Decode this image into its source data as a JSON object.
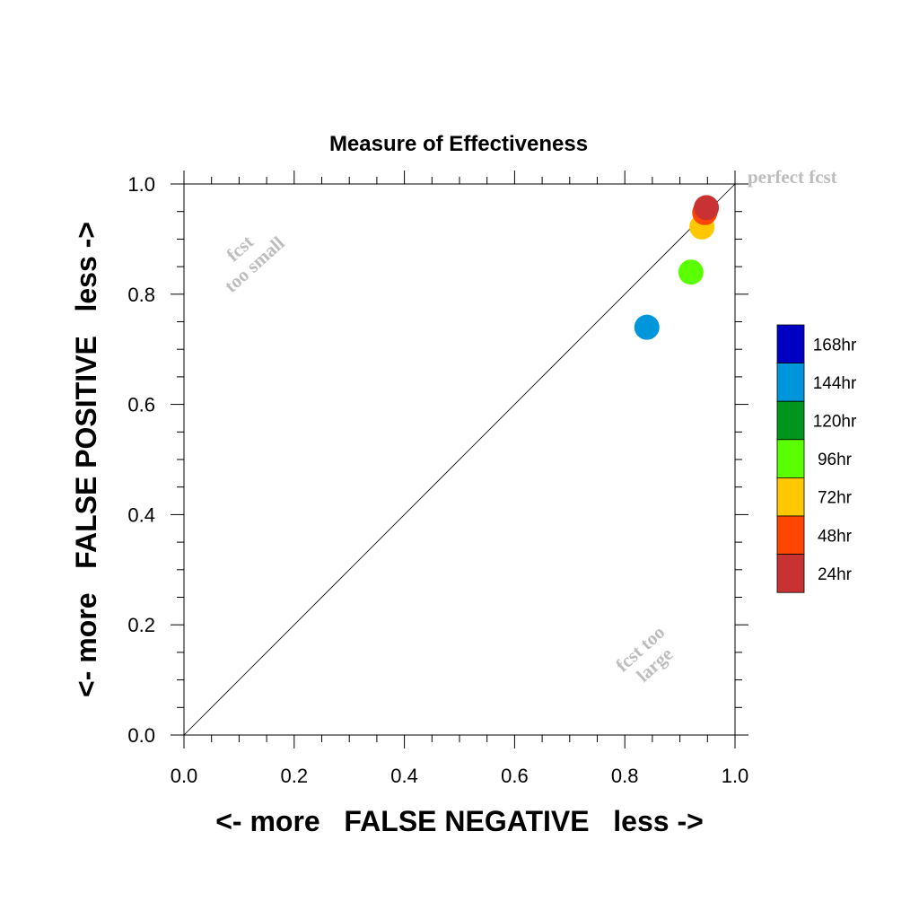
{
  "chart_data": {
    "type": "scatter",
    "title": "Measure of Effectiveness",
    "xlabel": "<- more   FALSE NEGATIVE   less ->",
    "ylabel": "<- more   FALSE POSITIVE   less ->",
    "xlim": [
      0.0,
      1.0
    ],
    "ylim": [
      0.0,
      1.0
    ],
    "x_ticks": [
      "0.0",
      "0.2",
      "0.4",
      "0.6",
      "0.8",
      "1.0"
    ],
    "y_ticks": [
      "0.0",
      "0.2",
      "0.4",
      "0.6",
      "0.8",
      "1.0"
    ],
    "grid": false,
    "legend_position": "right",
    "annotations": {
      "perfect": "perfect fcst",
      "too_small_line1": "fcst",
      "too_small_line2": "too small",
      "too_large_line1": "fcst too",
      "too_large_line2": "large"
    },
    "series": [
      {
        "name": "168hr",
        "color": "#0000c4",
        "points": []
      },
      {
        "name": "144hr",
        "color": "#0096dc",
        "points": [
          {
            "x": 0.84,
            "y": 0.74
          }
        ]
      },
      {
        "name": "120hr",
        "color": "#00961e",
        "points": []
      },
      {
        "name": "96hr",
        "color": "#5aff00",
        "points": [
          {
            "x": 0.92,
            "y": 0.84
          }
        ]
      },
      {
        "name": "72hr",
        "color": "#ffc800",
        "points": [
          {
            "x": 0.94,
            "y": 0.922
          }
        ]
      },
      {
        "name": "48hr",
        "color": "#ff4600",
        "points": [
          {
            "x": 0.945,
            "y": 0.948
          }
        ]
      },
      {
        "name": "24hr",
        "color": "#c83232",
        "points": [
          {
            "x": 0.948,
            "y": 0.957
          }
        ]
      }
    ]
  }
}
